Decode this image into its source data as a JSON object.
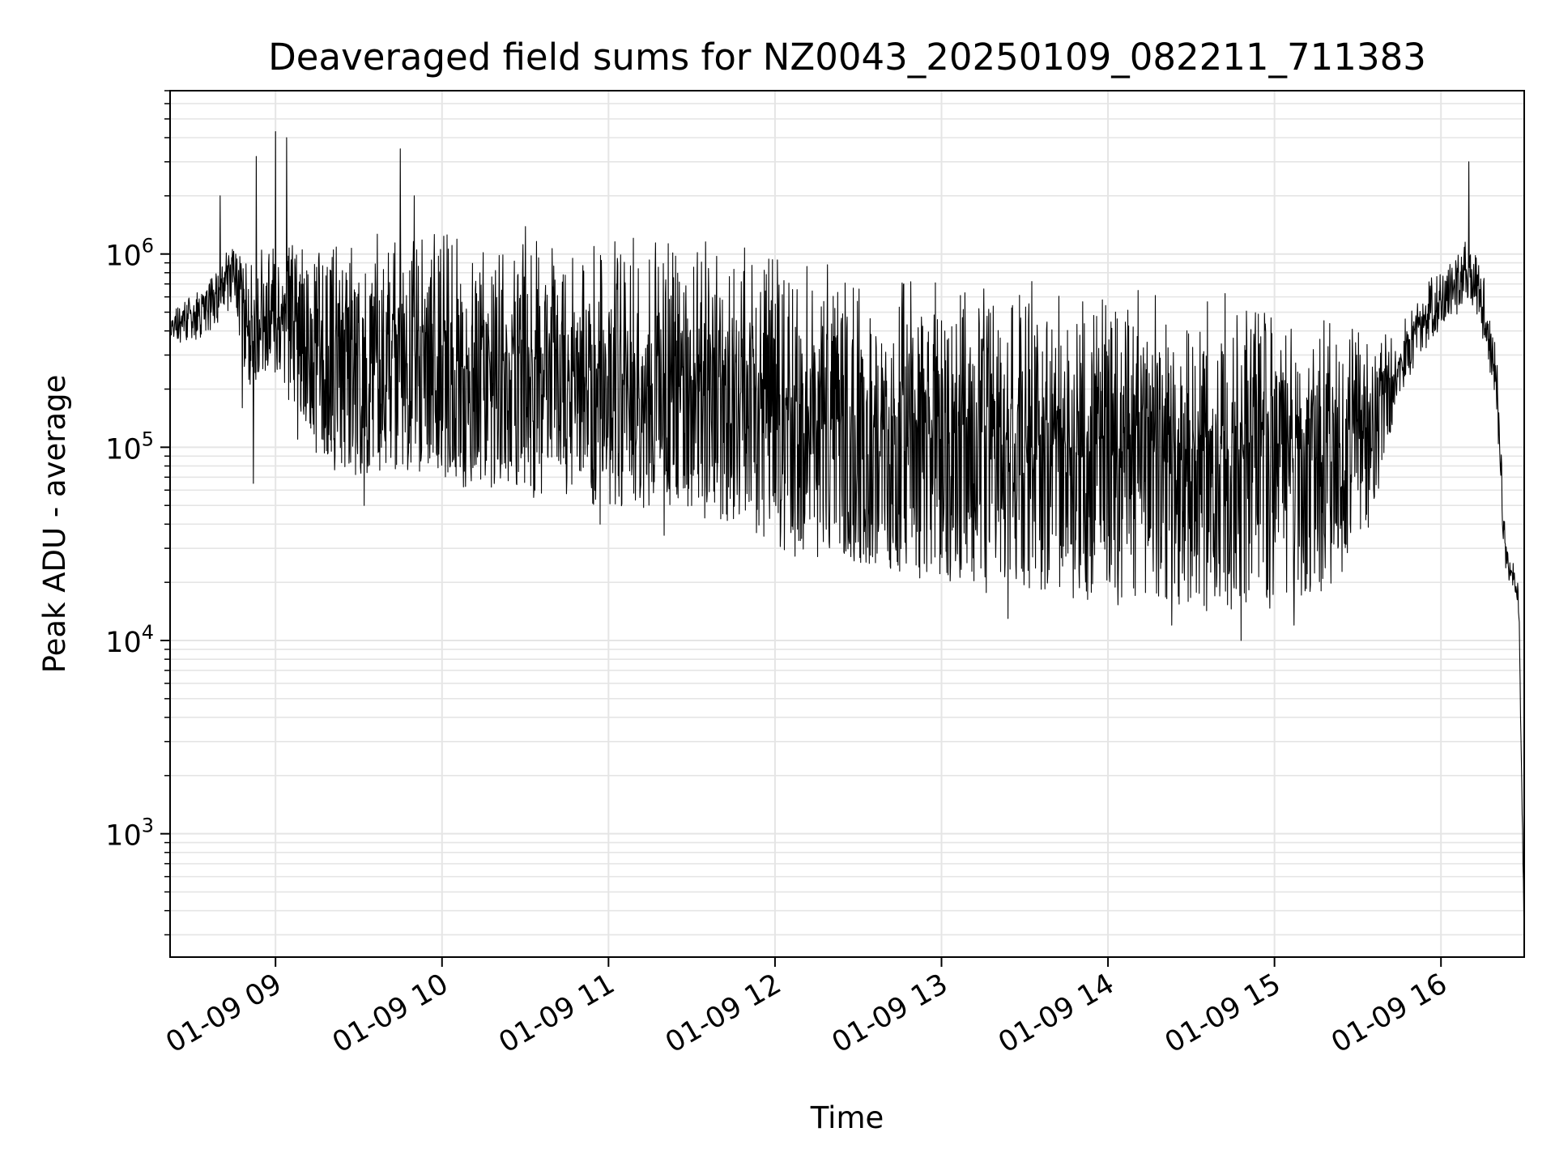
{
  "chart_data": {
    "type": "line",
    "title": "Deaveraged field sums for NZ0043_20250109_082211_711383",
    "xlabel": "Time",
    "ylabel": "Peak ADU - average",
    "y_scale": "log",
    "ylim": [
      230,
      7000000
    ],
    "xlim": [
      "01-09 08:22",
      "01-09 16:30"
    ],
    "grid": true,
    "line_color": "#000000",
    "grid_color": "#e5e5e5",
    "x_ticks": [
      {
        "label": "01-09 09",
        "hour": 9
      },
      {
        "label": "01-09 10",
        "hour": 10
      },
      {
        "label": "01-09 11",
        "hour": 11
      },
      {
        "label": "01-09 12",
        "hour": 12
      },
      {
        "label": "01-09 13",
        "hour": 13
      },
      {
        "label": "01-09 14",
        "hour": 14
      },
      {
        "label": "01-09 15",
        "hour": 15
      },
      {
        "label": "01-09 16",
        "hour": 16
      }
    ],
    "y_ticks": [
      {
        "base": "10",
        "exp": "3",
        "value": 1000
      },
      {
        "base": "10",
        "exp": "4",
        "value": 10000
      },
      {
        "base": "10",
        "exp": "5",
        "value": 100000
      },
      {
        "base": "10",
        "exp": "6",
        "value": 1000000
      }
    ],
    "envelope": [
      {
        "time": "08:22",
        "upper": 500000,
        "lower": 350000
      },
      {
        "time": "08:35",
        "upper": 700000,
        "lower": 400000
      },
      {
        "time": "08:45",
        "upper": 1200000,
        "lower": 600000
      },
      {
        "time": "08:50",
        "upper": 1000000,
        "lower": 200000
      },
      {
        "time": "09:00",
        "upper": 1300000,
        "lower": 250000
      },
      {
        "time": "09:15",
        "upper": 1250000,
        "lower": 90000
      },
      {
        "time": "09:30",
        "upper": 1300000,
        "lower": 70000
      },
      {
        "time": "09:45",
        "upper": 1350000,
        "lower": 80000
      },
      {
        "time": "10:00",
        "upper": 1350000,
        "lower": 70000
      },
      {
        "time": "10:30",
        "upper": 1350000,
        "lower": 60000
      },
      {
        "time": "11:00",
        "upper": 1300000,
        "lower": 50000
      },
      {
        "time": "11:30",
        "upper": 1250000,
        "lower": 45000
      },
      {
        "time": "11:50",
        "upper": 1200000,
        "lower": 40000
      },
      {
        "time": "12:00",
        "upper": 1100000,
        "lower": 30000
      },
      {
        "time": "12:30",
        "upper": 900000,
        "lower": 25000
      },
      {
        "time": "13:00",
        "upper": 800000,
        "lower": 20000
      },
      {
        "time": "13:30",
        "upper": 700000,
        "lower": 17000
      },
      {
        "time": "14:00",
        "upper": 700000,
        "lower": 16000
      },
      {
        "time": "14:30",
        "upper": 650000,
        "lower": 15000
      },
      {
        "time": "15:00",
        "upper": 600000,
        "lower": 15000
      },
      {
        "time": "15:20",
        "upper": 550000,
        "lower": 18000
      },
      {
        "time": "15:35",
        "upper": 500000,
        "lower": 40000
      },
      {
        "time": "15:45",
        "upper": 400000,
        "lower": 200000
      },
      {
        "time": "15:55",
        "upper": 700000,
        "lower": 350000
      },
      {
        "time": "16:05",
        "upper": 1000000,
        "lower": 500000
      },
      {
        "time": "16:10",
        "upper": 1400000,
        "lower": 600000
      },
      {
        "time": "16:15",
        "upper": 800000,
        "lower": 400000
      },
      {
        "time": "16:20",
        "upper": 300000,
        "lower": 150000
      },
      {
        "time": "16:23",
        "upper": 40000,
        "lower": 25000
      },
      {
        "time": "16:26",
        "upper": 25000,
        "lower": 18000
      },
      {
        "time": "16:28",
        "upper": 20000,
        "lower": 15000
      },
      {
        "time": "16:30",
        "upper": 300,
        "lower": 300
      }
    ],
    "spikes": [
      {
        "time": "08:53",
        "value": 3200000
      },
      {
        "time": "09:00",
        "value": 4300000
      },
      {
        "time": "09:04",
        "value": 4000000
      },
      {
        "time": "09:45",
        "value": 3500000
      },
      {
        "time": "08:40",
        "value": 2000000
      },
      {
        "time": "09:50",
        "value": 2000000
      },
      {
        "time": "16:10",
        "value": 3000000
      },
      {
        "time": "08:48",
        "value": 160000
      },
      {
        "time": "08:52",
        "value": 65000
      },
      {
        "time": "09:08",
        "value": 110000
      },
      {
        "time": "09:32",
        "value": 50000
      },
      {
        "time": "10:33",
        "value": 55000
      },
      {
        "time": "10:57",
        "value": 40000
      },
      {
        "time": "11:20",
        "value": 35000
      },
      {
        "time": "13:24",
        "value": 13000
      },
      {
        "time": "14:23",
        "value": 12000
      },
      {
        "time": "14:48",
        "value": 10000
      },
      {
        "time": "15:07",
        "value": 12000
      }
    ]
  }
}
